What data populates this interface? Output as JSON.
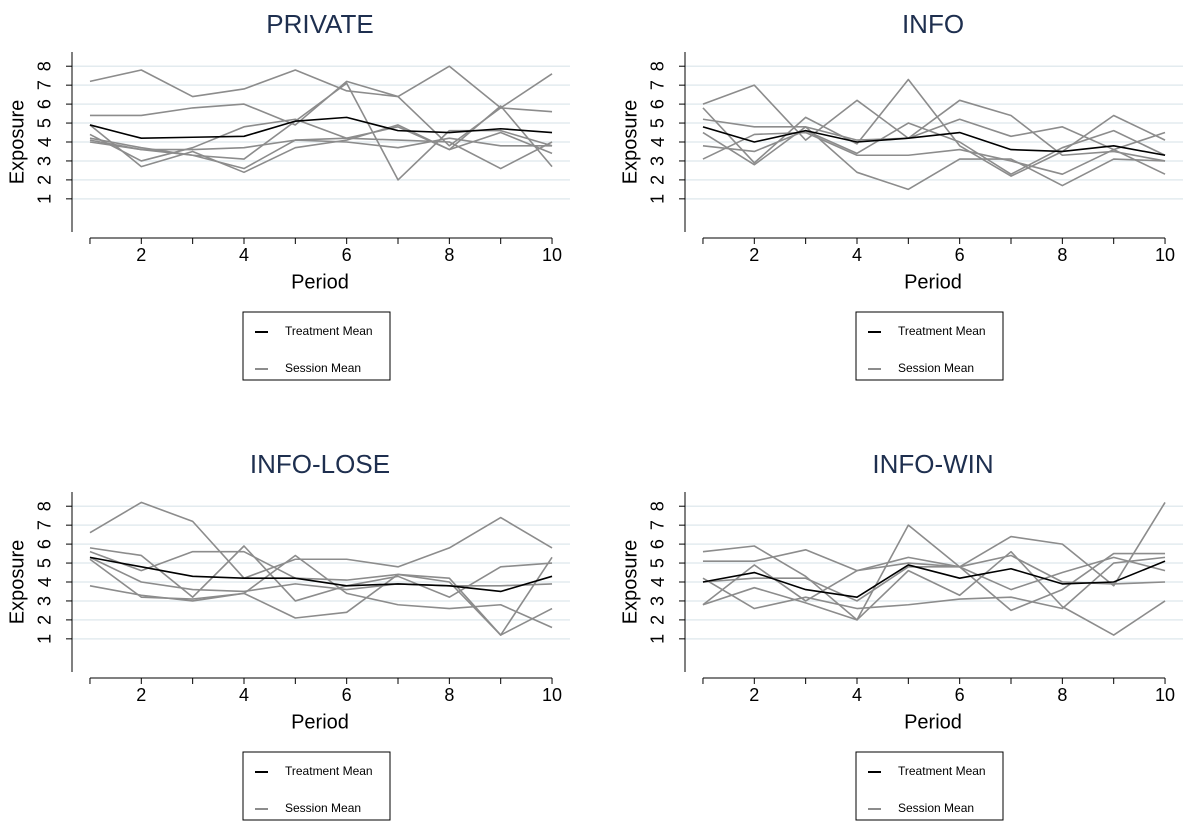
{
  "chart_data": [
    {
      "type": "line",
      "title": "PRIVATE",
      "xlabel": "Period",
      "ylabel": "Exposure",
      "x": [
        1,
        2,
        3,
        4,
        5,
        6,
        7,
        8,
        9,
        10
      ],
      "xlim": [
        0.65,
        10.35
      ],
      "ylim": [
        -0.75,
        8.75
      ],
      "xticks": [
        2,
        4,
        6,
        8,
        10
      ],
      "xminorticks": [
        1,
        3,
        5,
        7,
        9
      ],
      "yticks": [
        1,
        2,
        3,
        4,
        5,
        6,
        7,
        8
      ],
      "grid": true,
      "legend": "bottom",
      "series": [
        {
          "name": "Treatment Mean",
          "color": "#000000",
          "values": [
            4.9,
            4.2,
            4.25,
            4.3,
            5.1,
            5.3,
            4.6,
            4.5,
            4.7,
            4.5
          ]
        },
        {
          "name": "Session Mean",
          "color": "#8c8c8c",
          "values": [
            7.2,
            7.8,
            6.4,
            6.8,
            7.8,
            6.7,
            6.4,
            8.0,
            5.8,
            7.6
          ]
        },
        {
          "name": "Session Mean",
          "color": "#8c8c8c",
          "values": [
            5.4,
            5.4,
            5.8,
            6.0,
            4.9,
            7.2,
            6.4,
            3.8,
            5.8,
            5.6
          ]
        },
        {
          "name": "Session Mean",
          "color": "#8c8c8c",
          "values": [
            4.9,
            2.7,
            3.5,
            2.4,
            3.7,
            4.1,
            4.9,
            3.6,
            4.5,
            3.4
          ]
        },
        {
          "name": "Session Mean",
          "color": "#8c8c8c",
          "values": [
            4.1,
            3.6,
            3.3,
            3.1,
            5.1,
            7.1,
            2.0,
            4.6,
            4.6,
            3.8
          ]
        },
        {
          "name": "Session Mean",
          "color": "#8c8c8c",
          "values": [
            4.4,
            3.0,
            3.7,
            4.8,
            5.2,
            4.2,
            4.8,
            3.6,
            5.9,
            2.7
          ]
        },
        {
          "name": "Session Mean",
          "color": "#8c8c8c",
          "values": [
            4.0,
            3.6,
            3.6,
            3.7,
            4.1,
            4.0,
            3.7,
            4.2,
            3.8,
            3.8
          ]
        },
        {
          "name": "Session Mean",
          "color": "#8c8c8c",
          "values": [
            4.2,
            3.7,
            3.3,
            2.6,
            4.1,
            4.2,
            4.1,
            4.0,
            2.6,
            4.0
          ]
        }
      ]
    },
    {
      "type": "line",
      "title": "INFO",
      "xlabel": "Period",
      "ylabel": "Exposure",
      "x": [
        1,
        2,
        3,
        4,
        5,
        6,
        7,
        8,
        9,
        10
      ],
      "xlim": [
        0.65,
        10.35
      ],
      "ylim": [
        -0.75,
        8.75
      ],
      "xticks": [
        2,
        4,
        6,
        8,
        10
      ],
      "xminorticks": [
        1,
        3,
        5,
        7,
        9
      ],
      "yticks": [
        1,
        2,
        3,
        4,
        5,
        6,
        7,
        8
      ],
      "grid": true,
      "legend": "bottom",
      "series": [
        {
          "name": "Treatment Mean",
          "color": "#000000",
          "values": [
            4.8,
            4.0,
            4.6,
            4.0,
            4.2,
            4.5,
            3.6,
            3.5,
            3.8,
            3.3
          ]
        },
        {
          "name": "Session Mean",
          "color": "#8c8c8c",
          "values": [
            6.0,
            7.0,
            4.1,
            6.2,
            4.2,
            6.2,
            5.4,
            3.3,
            3.5,
            3.0
          ]
        },
        {
          "name": "Session Mean",
          "color": "#8c8c8c",
          "values": [
            5.8,
            2.9,
            5.3,
            3.9,
            7.3,
            3.8,
            2.2,
            3.5,
            5.4,
            4.1
          ]
        },
        {
          "name": "Session Mean",
          "color": "#8c8c8c",
          "values": [
            5.2,
            4.8,
            4.8,
            2.4,
            1.5,
            3.1,
            3.1,
            1.7,
            3.1,
            3.0
          ]
        },
        {
          "name": "Session Mean",
          "color": "#8c8c8c",
          "values": [
            3.1,
            4.4,
            4.5,
            3.3,
            3.3,
            3.6,
            3.0,
            2.3,
            3.6,
            2.3
          ]
        },
        {
          "name": "Session Mean",
          "color": "#8c8c8c",
          "values": [
            3.8,
            3.5,
            4.6,
            3.4,
            5.0,
            4.0,
            2.3,
            3.7,
            4.6,
            3.3
          ]
        },
        {
          "name": "Session Mean",
          "color": "#8c8c8c",
          "values": [
            4.5,
            2.8,
            4.8,
            4.1,
            4.2,
            5.2,
            4.3,
            4.8,
            3.6,
            4.5
          ]
        }
      ]
    },
    {
      "type": "line",
      "title": "INFO-LOSE",
      "xlabel": "Period",
      "ylabel": "Exposure",
      "x": [
        1,
        2,
        3,
        4,
        5,
        6,
        7,
        8,
        9,
        10
      ],
      "xlim": [
        0.65,
        10.35
      ],
      "ylim": [
        -0.75,
        8.75
      ],
      "xticks": [
        2,
        4,
        6,
        8,
        10
      ],
      "xminorticks": [
        1,
        3,
        5,
        7,
        9
      ],
      "yticks": [
        1,
        2,
        3,
        4,
        5,
        6,
        7,
        8
      ],
      "grid": true,
      "legend": "bottom",
      "series": [
        {
          "name": "Treatment Mean",
          "color": "#000000",
          "values": [
            5.3,
            4.8,
            4.3,
            4.2,
            4.2,
            3.8,
            3.9,
            3.8,
            3.5,
            4.3
          ]
        },
        {
          "name": "Session Mean",
          "color": "#8c8c8c",
          "values": [
            6.6,
            8.2,
            7.2,
            4.2,
            5.2,
            5.2,
            4.8,
            5.8,
            7.4,
            5.8
          ]
        },
        {
          "name": "Session Mean",
          "color": "#8c8c8c",
          "values": [
            5.8,
            5.4,
            3.2,
            5.9,
            3.0,
            3.8,
            4.3,
            3.2,
            4.8,
            5.0
          ]
        },
        {
          "name": "Session Mean",
          "color": "#8c8c8c",
          "values": [
            5.2,
            3.2,
            3.1,
            3.4,
            2.1,
            2.4,
            4.4,
            4.0,
            1.2,
            2.6
          ]
        },
        {
          "name": "Session Mean",
          "color": "#8c8c8c",
          "values": [
            3.8,
            3.3,
            3.0,
            3.4,
            5.4,
            3.4,
            2.8,
            2.6,
            2.8,
            1.6
          ]
        },
        {
          "name": "Session Mean",
          "color": "#8c8c8c",
          "values": [
            5.6,
            4.6,
            5.6,
            5.6,
            4.2,
            4.1,
            4.4,
            4.2,
            1.2,
            5.3
          ]
        },
        {
          "name": "Session Mean",
          "color": "#8c8c8c",
          "values": [
            5.3,
            4.0,
            3.6,
            3.5,
            3.9,
            3.6,
            3.9,
            3.8,
            3.8,
            3.9
          ]
        }
      ]
    },
    {
      "type": "line",
      "title": "INFO-WIN",
      "xlabel": "Period",
      "ylabel": "Exposure",
      "x": [
        1,
        2,
        3,
        4,
        5,
        6,
        7,
        8,
        9,
        10
      ],
      "xlim": [
        0.65,
        10.35
      ],
      "ylim": [
        -0.75,
        8.75
      ],
      "xticks": [
        2,
        4,
        6,
        8,
        10
      ],
      "xminorticks": [
        1,
        3,
        5,
        7,
        9
      ],
      "yticks": [
        1,
        2,
        3,
        4,
        5,
        6,
        7,
        8
      ],
      "grid": true,
      "legend": "bottom",
      "series": [
        {
          "name": "Treatment Mean",
          "color": "#000000",
          "values": [
            4.0,
            4.5,
            3.6,
            3.2,
            4.9,
            4.2,
            4.7,
            3.9,
            4.0,
            5.1
          ]
        },
        {
          "name": "Session Mean",
          "color": "#8c8c8c",
          "values": [
            5.6,
            5.9,
            4.3,
            2.0,
            7.0,
            4.8,
            6.4,
            6.0,
            3.8,
            8.2
          ]
        },
        {
          "name": "Session Mean",
          "color": "#8c8c8c",
          "values": [
            5.1,
            5.1,
            5.7,
            4.6,
            5.3,
            4.8,
            2.5,
            3.6,
            5.5,
            5.5
          ]
        },
        {
          "name": "Session Mean",
          "color": "#8c8c8c",
          "values": [
            2.8,
            3.7,
            2.9,
            2.0,
            4.6,
            3.3,
            5.6,
            2.7,
            1.2,
            3.0
          ]
        },
        {
          "name": "Session Mean",
          "color": "#8c8c8c",
          "values": [
            4.2,
            2.6,
            3.2,
            2.6,
            2.8,
            3.1,
            3.2,
            2.6,
            5.0,
            5.3
          ]
        },
        {
          "name": "Session Mean",
          "color": "#8c8c8c",
          "values": [
            2.8,
            4.9,
            3.0,
            4.6,
            5.0,
            4.8,
            3.6,
            4.5,
            5.3,
            4.6
          ]
        },
        {
          "name": "Session Mean",
          "color": "#8c8c8c",
          "values": [
            4.0,
            4.2,
            4.2,
            3.0,
            4.8,
            4.8,
            5.4,
            4.0,
            3.9,
            4.0
          ]
        }
      ]
    }
  ]
}
